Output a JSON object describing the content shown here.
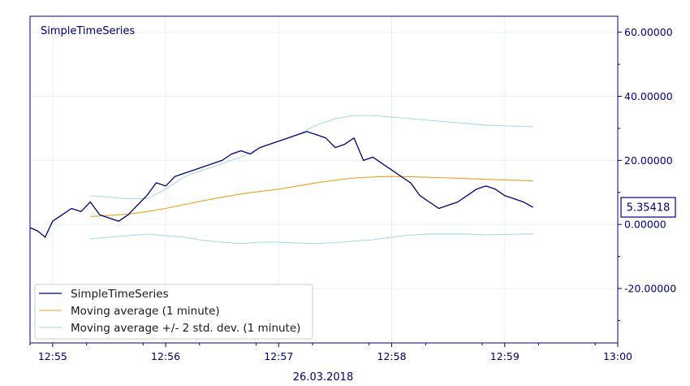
{
  "chart_data": {
    "type": "line",
    "title": "SimpleTimeSeries",
    "date_label": "26.03.2018",
    "x_unit": "HH:MM:SS",
    "xlim": [
      "12:54:48",
      "13:00:00"
    ],
    "x_ticks": [
      "12:55",
      "12:56",
      "12:57",
      "12:58",
      "12:59",
      "13:00"
    ],
    "ylim": [
      -37,
      65
    ],
    "y_ticks": [
      60,
      40,
      20,
      0,
      -20
    ],
    "y_tick_labels": [
      "60.00000",
      "40.00000",
      "20.00000",
      "0.00000",
      "-20.00000"
    ],
    "grid": true,
    "legend_position": "bottom-left",
    "current_value_label": "5.35418",
    "series": [
      {
        "name": "SimpleTimeSeries",
        "color": "#000080",
        "x": [
          "12:54:48",
          "12:54:52",
          "12:54:56",
          "12:55:00",
          "12:55:05",
          "12:55:10",
          "12:55:15",
          "12:55:20",
          "12:55:25",
          "12:55:30",
          "12:55:35",
          "12:55:40",
          "12:55:45",
          "12:55:50",
          "12:55:55",
          "12:56:00",
          "12:56:05",
          "12:56:10",
          "12:56:15",
          "12:56:20",
          "12:56:25",
          "12:56:30",
          "12:56:35",
          "12:56:40",
          "12:56:45",
          "12:56:50",
          "12:56:55",
          "12:57:00",
          "12:57:05",
          "12:57:10",
          "12:57:15",
          "12:57:20",
          "12:57:25",
          "12:57:30",
          "12:57:35",
          "12:57:40",
          "12:57:45",
          "12:57:50",
          "12:57:55",
          "12:58:00",
          "12:58:05",
          "12:58:10",
          "12:58:15",
          "12:58:20",
          "12:58:25",
          "12:58:30",
          "12:58:35",
          "12:58:40",
          "12:58:45",
          "12:58:50",
          "12:58:55",
          "12:59:00",
          "12:59:05",
          "12:59:10",
          "12:59:15"
        ],
        "y": [
          -1,
          -2,
          -4,
          1,
          3,
          5,
          4,
          7,
          3,
          2,
          1,
          3,
          6,
          9,
          13,
          12,
          15,
          16,
          17,
          18,
          19,
          20,
          22,
          23,
          22,
          24,
          25,
          26,
          27,
          28,
          29,
          28,
          27,
          24,
          25,
          27,
          20,
          21,
          19,
          17,
          15,
          13,
          9,
          7,
          5,
          6,
          7,
          9,
          11,
          12,
          11,
          9,
          8,
          7,
          5.35
        ]
      },
      {
        "name": "Moving average (1 minute)",
        "color": "#f0a020",
        "x": [
          "12:55:20",
          "12:55:30",
          "12:55:40",
          "12:55:50",
          "12:56:00",
          "12:56:10",
          "12:56:20",
          "12:56:30",
          "12:56:40",
          "12:56:50",
          "12:57:00",
          "12:57:10",
          "12:57:20",
          "12:57:30",
          "12:57:40",
          "12:57:50",
          "12:58:00",
          "12:58:10",
          "12:58:20",
          "12:58:30",
          "12:58:40",
          "12:58:50",
          "12:59:00",
          "12:59:10",
          "12:59:15"
        ],
        "y": [
          2.5,
          2.8,
          3.2,
          4.0,
          5.0,
          6.2,
          7.4,
          8.5,
          9.5,
          10.3,
          11.0,
          12.0,
          13.0,
          13.8,
          14.5,
          14.8,
          15.0,
          14.9,
          14.7,
          14.5,
          14.3,
          14.1,
          13.9,
          13.7,
          13.6
        ]
      },
      {
        "name": "Moving average +/- 2 std. dev. (1 minute)",
        "color": "#9ad4ea",
        "x": [
          "12:55:20",
          "12:55:30",
          "12:55:40",
          "12:55:50",
          "12:56:00",
          "12:56:10",
          "12:56:20",
          "12:56:30",
          "12:56:40",
          "12:56:50",
          "12:57:00",
          "12:57:10",
          "12:57:20",
          "12:57:30",
          "12:57:40",
          "12:57:50",
          "12:58:00",
          "12:58:10",
          "12:58:20",
          "12:58:30",
          "12:58:40",
          "12:58:50",
          "12:59:00",
          "12:59:10",
          "12:59:15"
        ],
        "y": [
          9,
          8.5,
          8,
          8,
          11,
          15,
          17,
          19,
          21,
          24,
          26,
          28,
          31,
          33,
          34,
          34,
          33.5,
          33,
          32.5,
          32,
          31.5,
          31,
          30.8,
          30.6,
          30.5
        ]
      },
      {
        "name": "",
        "color": "#9ad4ea",
        "x": [
          "12:55:20",
          "12:55:30",
          "12:55:40",
          "12:55:50",
          "12:56:00",
          "12:56:10",
          "12:56:20",
          "12:56:30",
          "12:56:40",
          "12:56:50",
          "12:57:00",
          "12:57:10",
          "12:57:20",
          "12:57:30",
          "12:57:40",
          "12:57:50",
          "12:58:00",
          "12:58:10",
          "12:58:20",
          "12:58:30",
          "12:58:40",
          "12:58:50",
          "12:59:00",
          "12:59:10",
          "12:59:15"
        ],
        "y": [
          -4.5,
          -4,
          -3.5,
          -3,
          -3.5,
          -4,
          -5,
          -5.5,
          -6,
          -5.5,
          -5.5,
          -5.8,
          -6,
          -5.7,
          -5.2,
          -4.8,
          -4,
          -3.3,
          -3,
          -3,
          -3,
          -3.2,
          -3.1,
          -3,
          -3
        ]
      }
    ]
  }
}
